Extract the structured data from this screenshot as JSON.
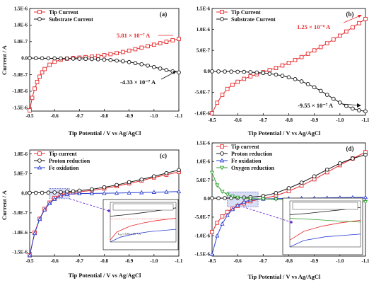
{
  "figure": {
    "panels": [
      {
        "label": "(a)",
        "ylabel": "Current / A",
        "xlabel": "Tip Potential / V vs Ag/AgCl"
      },
      {
        "label": "(b)",
        "ylabel": "",
        "xlabel": "Tip Potential / V vs Ag/AgCl"
      },
      {
        "label": "(c)",
        "ylabel": "Current / A",
        "xlabel": "Tip Potential / V vs Ag/AgCl"
      },
      {
        "label": "(d)",
        "ylabel": "",
        "xlabel": "Tip Potential / V vs Ag/AgCl"
      }
    ]
  },
  "colors": {
    "red": "#e8282b",
    "black": "#111111",
    "blue": "#2a3fd0",
    "green": "#2ea02e",
    "annotation_red": "#e8282b"
  },
  "chart_data": [
    {
      "type": "line",
      "label": "(a)",
      "xlabel": "Tip Potential / V vs Ag/AgCl",
      "ylabel": "Current / A",
      "xlim": [
        -0.5,
        -1.1
      ],
      "ylim": [
        -1.6e-06,
        1.5e-06
      ],
      "x_ticks": [
        -0.5,
        -0.6,
        -0.7,
        -0.8,
        -0.9,
        -1.0,
        -1.1
      ],
      "x_tick_labels": [
        "-0.5",
        "-0.6",
        "-0.7",
        "-0.8",
        "-0.9",
        "-1.0",
        "-1.1"
      ],
      "y_ticks": [
        -1.5e-06,
        -1e-06,
        -5e-07,
        0,
        5e-07,
        1e-06,
        1.5e-06
      ],
      "y_tick_labels": [
        "-1.5E-6",
        "-1.0E-6",
        "-5.0E-7",
        "0.0",
        "5.0E-7",
        "1.0E-6",
        "1.5E-6"
      ],
      "legend_position": "top-left",
      "annotations": [
        {
          "text": "5.81 × 10⁻⁷ A",
          "color": "red"
        },
        {
          "text": "-4.33 × 10⁻⁷ A",
          "color": "black"
        }
      ],
      "series": [
        {
          "name": "Tip Current",
          "color": "red",
          "marker": "square",
          "x": [
            -0.5,
            -0.51,
            -0.52,
            -0.53,
            -0.54,
            -0.55,
            -0.56,
            -0.58,
            -0.6,
            -0.625,
            -0.65,
            -0.675,
            -0.7,
            -0.725,
            -0.75,
            -0.775,
            -0.8,
            -0.825,
            -0.85,
            -0.875,
            -0.9,
            -0.925,
            -0.95,
            -0.975,
            -1.0,
            -1.025,
            -1.05,
            -1.075,
            -1.1
          ],
          "y": [
            -1.58e-06,
            -1.2e-06,
            -9.2e-07,
            -7.2e-07,
            -5.6e-07,
            -4.3e-07,
            -3.3e-07,
            -2e-07,
            -1.1e-07,
            -5e-08,
            -1.5e-08,
            5e-09,
            1.5e-08,
            3e-08,
            4.5e-08,
            6.5e-08,
            9e-08,
            1.2e-07,
            1.5e-07,
            1.85e-07,
            2.25e-07,
            2.7e-07,
            3.15e-07,
            3.6e-07,
            4.05e-07,
            4.5e-07,
            4.95e-07,
            5.4e-07,
            5.81e-07
          ]
        },
        {
          "name": "Substrate Current",
          "color": "black",
          "marker": "circle",
          "x": [
            -0.5,
            -0.525,
            -0.55,
            -0.575,
            -0.6,
            -0.625,
            -0.65,
            -0.675,
            -0.7,
            -0.725,
            -0.75,
            -0.775,
            -0.8,
            -0.825,
            -0.85,
            -0.875,
            -0.9,
            -0.925,
            -0.95,
            -0.975,
            -1.0,
            -1.025,
            -1.05,
            -1.075,
            -1.1
          ],
          "y": [
            0,
            -2e-09,
            -4e-09,
            -6e-09,
            -8e-09,
            -1e-08,
            -1.2e-08,
            -1.5e-08,
            -1.8e-08,
            -2.2e-08,
            -2.8e-08,
            -3.5e-08,
            -4.5e-08,
            -5.8e-08,
            -7.5e-08,
            -9.5e-08,
            -1.2e-07,
            -1.5e-07,
            -1.85e-07,
            -2.25e-07,
            -2.7e-07,
            -3.15e-07,
            -3.6e-07,
            -4e-07,
            -4.33e-07
          ]
        }
      ]
    },
    {
      "type": "line",
      "label": "(b)",
      "xlabel": "Tip Potential / V vs Ag/AgCl",
      "ylabel": "",
      "xlim": [
        -0.5,
        -1.1
      ],
      "ylim": [
        -1.05e-06,
        1.5e-06
      ],
      "x_ticks": [
        -0.5,
        -0.6,
        -0.7,
        -0.8,
        -0.9,
        -1.0,
        -1.1
      ],
      "x_tick_labels": [
        "-0.5",
        "-0.6",
        "-0.7",
        "-0.8",
        "-0.9",
        "-1.0",
        "-1.1"
      ],
      "y_ticks": [
        -1e-06,
        -5e-07,
        0,
        5e-07,
        1e-06,
        1.5e-06
      ],
      "y_tick_labels": [
        "-1.0E-6",
        "-5.0E-7",
        "0.0",
        "5.0E-7",
        "1.0E-6",
        "1.5E-6"
      ],
      "legend_position": "top-left",
      "annotations": [
        {
          "text": "1.25 × 10⁻⁶ A",
          "color": "red"
        },
        {
          "text": "-9.55 × 10⁻⁷ A",
          "color": "black"
        }
      ],
      "series": [
        {
          "name": "Tip Current",
          "color": "red",
          "marker": "square",
          "x": [
            -0.5,
            -0.52,
            -0.54,
            -0.56,
            -0.58,
            -0.6,
            -0.625,
            -0.65,
            -0.675,
            -0.7,
            -0.725,
            -0.75,
            -0.775,
            -0.8,
            -0.825,
            -0.85,
            -0.875,
            -0.9,
            -0.925,
            -0.95,
            -0.975,
            -1.0,
            -1.025,
            -1.05,
            -1.075,
            -1.1
          ],
          "y": [
            -1e-06,
            -7.5e-07,
            -5.6e-07,
            -4.2e-07,
            -3.2e-07,
            -2.5e-07,
            -1.8e-07,
            -1.2e-07,
            -7e-08,
            -2e-08,
            3e-08,
            8e-08,
            1.4e-07,
            2e-07,
            2.7e-07,
            3.4e-07,
            4.2e-07,
            5e-07,
            5.8e-07,
            6.7e-07,
            7.6e-07,
            8.5e-07,
            9.5e-07,
            1.05e-06,
            1.15e-06,
            1.25e-06
          ]
        },
        {
          "name": "Substrate Current",
          "color": "black",
          "marker": "circle",
          "x": [
            -0.5,
            -0.525,
            -0.55,
            -0.575,
            -0.6,
            -0.625,
            -0.65,
            -0.675,
            -0.7,
            -0.725,
            -0.75,
            -0.775,
            -0.8,
            -0.825,
            -0.85,
            -0.875,
            -0.9,
            -0.925,
            -0.95,
            -0.975,
            -1.0,
            -1.025,
            -1.05,
            -1.075,
            -1.1
          ],
          "y": [
            0,
            -2e-09,
            -4e-09,
            -6e-09,
            -1e-08,
            -1.4e-08,
            -2e-08,
            -2.8e-08,
            -4e-08,
            -5.6e-08,
            -7.8e-08,
            -1.06e-07,
            -1.42e-07,
            -1.86e-07,
            -2.4e-07,
            -3.04e-07,
            -3.8e-07,
            -4.66e-07,
            -5.6e-07,
            -6.55e-07,
            -7.45e-07,
            -8.25e-07,
            -8.9e-07,
            -9.3e-07,
            -9.55e-07
          ]
        }
      ]
    },
    {
      "type": "line",
      "label": "(c)",
      "xlabel": "Tip Potential / V vs Ag/AgCl",
      "ylabel": "Current / A",
      "xlim": [
        -0.5,
        -1.1
      ],
      "ylim": [
        -1.6e-06,
        1.1e-06
      ],
      "x_ticks": [
        -0.5,
        -0.6,
        -0.7,
        -0.8,
        -0.9,
        -1.0,
        -1.1
      ],
      "x_tick_labels": [
        "-0.5",
        "-0.6",
        "-0.7",
        "-0.8",
        "-0.9",
        "-1.0",
        "-1.1"
      ],
      "y_ticks": [
        -1.5e-06,
        -1e-06,
        -5e-07,
        0,
        5e-07,
        1e-06
      ],
      "y_tick_labels": [
        "-1.5E-6",
        "-1.0E-6",
        "-5.0E-7",
        "0.0",
        "5.0E-7",
        "1.0E-6"
      ],
      "legend_position": "top-left",
      "inset_annotation": "Iₛₒₓ ≈ 5.83 × 10⁻⁸ A",
      "series": [
        {
          "name": "Tip current",
          "color": "red",
          "marker": "square",
          "x": [
            -0.5,
            -0.52,
            -0.54,
            -0.56,
            -0.58,
            -0.6,
            -0.625,
            -0.65,
            -0.675,
            -0.7,
            -0.75,
            -0.8,
            -0.85,
            -0.9,
            -0.95,
            -1.0,
            -1.05,
            -1.1
          ],
          "y": [
            -1.58e-06,
            -1e-06,
            -6.5e-07,
            -4e-07,
            -2.4e-07,
            -1.2e-07,
            -4e-08,
            0,
            2e-08,
            3.5e-08,
            7e-08,
            1.2e-07,
            1.8e-07,
            2.5e-07,
            3.2e-07,
            4e-07,
            4.7e-07,
            5.4e-07
          ]
        },
        {
          "name": "Proton reduction",
          "color": "black",
          "marker": "circle",
          "x": [
            -0.5,
            -0.525,
            -0.55,
            -0.575,
            -0.6,
            -0.625,
            -0.65,
            -0.675,
            -0.7,
            -0.75,
            -0.8,
            -0.85,
            -0.9,
            -0.95,
            -1.0,
            -1.05,
            -1.1
          ],
          "y": [
            1e-08,
            1e-08,
            1.2e-08,
            1.5e-08,
            2e-08,
            2.8e-08,
            3.8e-08,
            5e-08,
            6.5e-08,
            1e-07,
            1.5e-07,
            2.1e-07,
            2.8e-07,
            3.5e-07,
            4.3e-07,
            5.1e-07,
            5.9e-07
          ]
        },
        {
          "name": "Fe oxidation",
          "color": "blue",
          "marker": "triangle",
          "x": [
            -0.5,
            -0.52,
            -0.54,
            -0.56,
            -0.58,
            -0.6,
            -0.625,
            -0.65,
            -0.7,
            -0.75,
            -0.8,
            -0.85,
            -0.9,
            -0.95,
            -1.0,
            -1.05,
            -1.1
          ],
          "y": [
            -1.58e-06,
            -1.02e-06,
            -6.6e-07,
            -4.2e-07,
            -2.6e-07,
            -1.5e-07,
            -7e-08,
            -2.5e-08,
            -1e-08,
            -5e-09,
            0,
            5e-09,
            1e-08,
            1.8e-08,
            2.6e-08,
            3.4e-08,
            4.2e-08
          ]
        }
      ]
    },
    {
      "type": "line",
      "label": "(d)",
      "xlabel": "Tip Potential / V vs Ag/AgCl",
      "ylabel": "",
      "xlim": [
        -0.5,
        -1.1
      ],
      "ylim": [
        -1.55e-06,
        1.5e-06
      ],
      "x_ticks": [
        -0.5,
        -0.6,
        -0.7,
        -0.8,
        -0.9,
        -1.0,
        -1.1
      ],
      "x_tick_labels": [
        "-0.5",
        "-0.6",
        "-0.7",
        "-0.8",
        "-0.9",
        "-1.0",
        "-1.1"
      ],
      "y_ticks": [
        -1.5e-06,
        -1e-06,
        -5e-07,
        0,
        5e-07,
        1e-06,
        1.5e-06
      ],
      "y_tick_labels": [
        "-1.5E-6",
        "-1.0E-6",
        "-5.0E-7",
        "0.0",
        "5.0E-7",
        "1.0E-6",
        "1.5E-6"
      ],
      "legend_position": "top-left",
      "series": [
        {
          "name": "Tip current",
          "color": "red",
          "marker": "square",
          "x": [
            -0.5,
            -0.52,
            -0.54,
            -0.56,
            -0.58,
            -0.6,
            -0.625,
            -0.65,
            -0.7,
            -0.75,
            -0.8,
            -0.85,
            -0.9,
            -0.95,
            -1.0,
            -1.05,
            -1.1
          ],
          "y": [
            -9e-07,
            -6.5e-07,
            -4.8e-07,
            -3.6e-07,
            -2.7e-07,
            -2e-07,
            -1.3e-07,
            -7e-08,
            0,
            8e-08,
            2e-07,
            3.5e-07,
            5.2e-07,
            7.1e-07,
            9e-07,
            1.08e-06,
            1.25e-06
          ]
        },
        {
          "name": "Proton reduction",
          "color": "black",
          "marker": "circle",
          "x": [
            -0.5,
            -0.525,
            -0.55,
            -0.575,
            -0.6,
            -0.625,
            -0.65,
            -0.7,
            -0.75,
            -0.8,
            -0.85,
            -0.9,
            -0.95,
            -1.0,
            -1.05,
            -1.1
          ],
          "y": [
            1e-08,
            1e-08,
            1.2e-08,
            1.5e-08,
            2e-08,
            2.8e-08,
            3.8e-08,
            7e-08,
            1.5e-07,
            2.8e-07,
            4.3e-07,
            6e-07,
            7.8e-07,
            9.5e-07,
            1.08e-06,
            1.18e-06
          ]
        },
        {
          "name": "Fe oxidation",
          "color": "blue",
          "marker": "triangle",
          "x": [
            -0.5,
            -0.52,
            -0.54,
            -0.56,
            -0.58,
            -0.6,
            -0.625,
            -0.65,
            -0.7,
            -0.75,
            -0.8,
            -0.85,
            -0.9,
            -0.95,
            -1.0,
            -1.05,
            -1.1
          ],
          "y": [
            -1.5e-06,
            -1e-06,
            -6.8e-07,
            -4.5e-07,
            -2.9e-07,
            -1.8e-07,
            -9e-08,
            -4e-08,
            -1e-08,
            0,
            5e-09,
            1e-08,
            1.5e-08,
            2e-08,
            2.5e-08,
            3e-08,
            3.5e-08
          ]
        },
        {
          "name": "Oxygen reduction",
          "color": "green",
          "marker": "triangle-down",
          "x": [
            -0.5,
            -0.52,
            -0.54,
            -0.56,
            -0.58,
            -0.6,
            -0.65,
            -0.7,
            -0.75,
            -0.8,
            -0.85,
            -0.9,
            -0.95,
            -1.0,
            -1.05,
            -1.1
          ],
          "y": [
            7e-07,
            3.6e-07,
            1.9e-07,
            1.1e-07,
            6e-08,
            3e-08,
            0,
            -1e-08,
            -2e-08,
            -3e-08,
            -4e-08,
            -5e-08,
            -6e-08,
            -7e-08,
            -8e-08,
            -9e-08
          ]
        }
      ]
    }
  ]
}
